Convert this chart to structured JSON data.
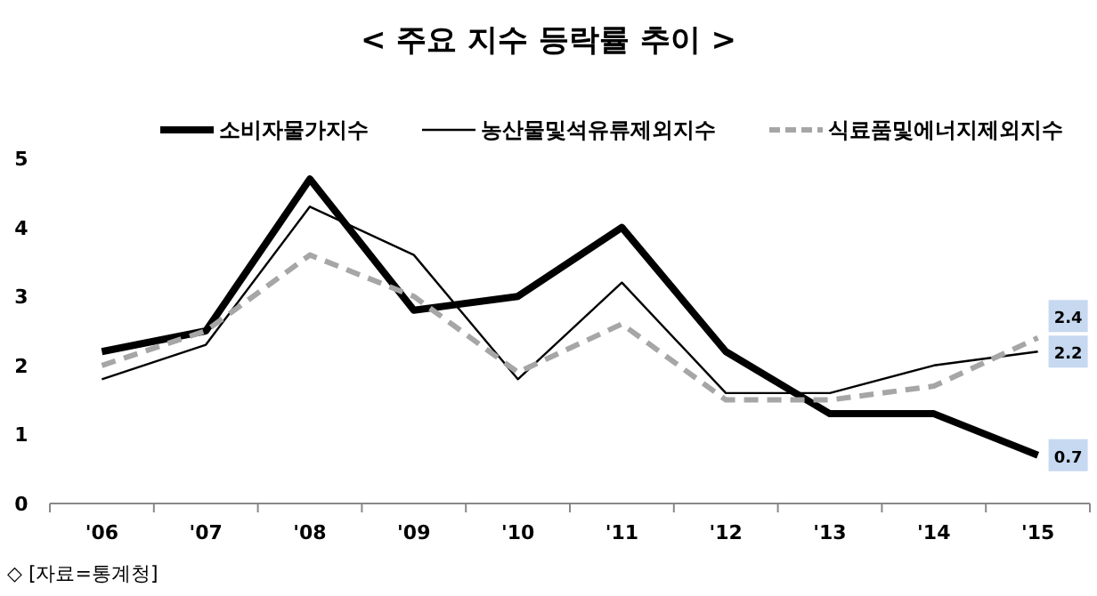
{
  "chart_data": {
    "type": "line",
    "title": "< 주요 지수 등락률 추이 >",
    "categories": [
      "'06",
      "'07",
      "'08",
      "'09",
      "'10",
      "'11",
      "'12",
      "'13",
      "'14",
      "'15"
    ],
    "ylim": [
      0,
      5
    ],
    "yticks": [
      0,
      1,
      2,
      3,
      4,
      5
    ],
    "legend": "top",
    "grid": false,
    "marker": "none",
    "series": [
      {
        "name": "소비자물가지수",
        "color": "#000000",
        "line_style": "solid",
        "values": [
          2.2,
          2.5,
          4.7,
          2.8,
          3.0,
          4.0,
          2.2,
          1.3,
          1.3,
          0.7
        ],
        "value_labels": [
          null,
          null,
          null,
          null,
          null,
          null,
          null,
          null,
          null,
          "0.7"
        ]
      },
      {
        "name": "농산물및석유류제외지수",
        "color": "#000000",
        "line_style": "solid",
        "values": [
          1.8,
          2.3,
          4.3,
          3.6,
          1.8,
          3.2,
          1.6,
          1.6,
          2.0,
          2.2
        ],
        "value_labels": [
          null,
          null,
          null,
          null,
          null,
          null,
          null,
          null,
          null,
          "2.2"
        ]
      },
      {
        "name": "식료품및에너지제외지수",
        "color": "#a6a6a6",
        "line_style": "dashed",
        "values": [
          2.0,
          2.5,
          3.6,
          3.0,
          1.9,
          2.6,
          1.5,
          1.5,
          1.7,
          2.4
        ],
        "value_labels": [
          null,
          null,
          null,
          null,
          null,
          null,
          null,
          null,
          null,
          "2.4"
        ]
      }
    ],
    "annotations": [
      "◇ [자료=통계청]"
    ]
  }
}
